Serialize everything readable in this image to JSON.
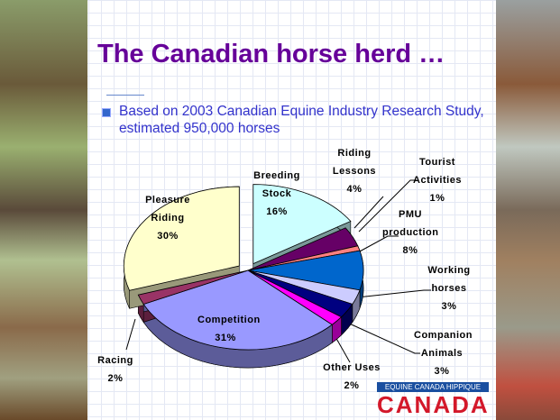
{
  "chart_data": {
    "type": "pie",
    "title": "The Canadian horse herd …",
    "subtitle": "Based on 2003 Canadian Equine Industry Research Study, estimated 950,000 horses",
    "categories": [
      "Breeding Stock",
      "Riding Lessons",
      "Tourist Activities",
      "PMU production",
      "Working horses",
      "Companion Animals",
      "Other Uses",
      "Competition",
      "Racing",
      "Pleasure Riding"
    ],
    "values": [
      16,
      4,
      1,
      8,
      3,
      3,
      2,
      31,
      2,
      30
    ],
    "value_labels": [
      "16%",
      "4%",
      "1%",
      "8%",
      "3%",
      "3%",
      "2%",
      "31%",
      "2%",
      "30%"
    ],
    "colors": [
      "#ccffff",
      "#660066",
      "#ff8080",
      "#0066cc",
      "#ccccff",
      "#000080",
      "#ff00ff",
      "#9999ff",
      "#993366",
      "#ffffcc"
    ],
    "exploded": [
      0,
      9
    ]
  },
  "logo": {
    "banner": "EQUINE CANADA HIPPIQUE",
    "name": "CANADA"
  }
}
